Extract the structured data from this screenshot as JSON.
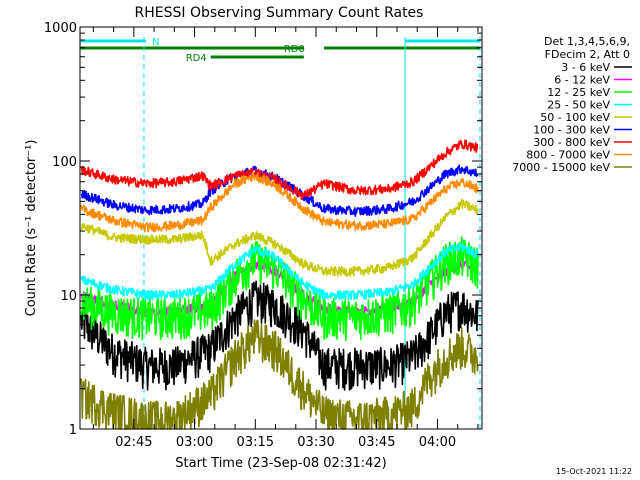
{
  "chart_data": {
    "type": "line",
    "title": "RHESSI Observing Summary Count Rates",
    "xlabel": "Start Time (23-Sep-08 02:31:42)",
    "ylabel": "Count Rate (s⁻¹ detector⁻¹)",
    "yscale": "log",
    "ylim": [
      1,
      1000
    ],
    "xlim": [
      "02:31:42",
      "04:11:00"
    ],
    "x_ticks": [
      "02:45",
      "03:00",
      "03:15",
      "03:30",
      "03:45",
      "04:00"
    ],
    "y_ticks": [
      "1",
      "10",
      "100",
      "1000"
    ],
    "footer_date": "15-Oct-2021 11:22",
    "legend_title": [
      "Det 1,3,4,5,6,9,",
      "FDecim 2, Att 0"
    ],
    "flags": [
      {
        "label": "N",
        "color": "#00e5ee",
        "segments": [
          [
            "02:31:42",
            "02:48:00"
          ],
          [
            "03:52:00",
            "04:10:30"
          ]
        ]
      },
      {
        "label": "RD0",
        "color": "#008000",
        "segments": [
          [
            "02:31:42",
            "03:27:00"
          ],
          [
            "03:32:00",
            "04:10:30"
          ]
        ]
      },
      {
        "label": "RD4",
        "color": "#008000",
        "segments": [
          [
            "03:04:00",
            "03:27:00"
          ]
        ]
      }
    ],
    "series": [
      {
        "name": "3 - 6 keV",
        "color": "#000000",
        "x": [
          "02:32",
          "02:40",
          "02:48",
          "02:55",
          "03:04",
          "03:10",
          "03:15",
          "03:20",
          "03:27",
          "03:32",
          "03:40",
          "03:48",
          "03:54",
          "03:58",
          "04:02",
          "04:06",
          "04:10"
        ],
        "y": [
          6.5,
          3.8,
          3.0,
          3.0,
          4.0,
          7.0,
          9.5,
          8.5,
          5.5,
          3.0,
          3.0,
          3.0,
          3.5,
          5.0,
          7.5,
          8.5,
          7.0
        ]
      },
      {
        "name": "6 - 12 keV",
        "color": "#ff00ff",
        "x": [
          "02:32",
          "02:40",
          "02:48",
          "02:55",
          "03:04",
          "03:10",
          "03:15",
          "03:20",
          "03:27",
          "03:32",
          "03:40",
          "03:48",
          "03:54",
          "03:58",
          "04:02",
          "04:06",
          "04:10"
        ],
        "y": [
          10,
          8.5,
          7.5,
          7.5,
          8.5,
          14,
          17,
          15,
          10,
          8,
          7.5,
          8,
          9,
          12,
          15,
          17,
          15
        ]
      },
      {
        "name": "12 - 25 keV",
        "color": "#00ff00",
        "x": [
          "02:32",
          "02:40",
          "02:48",
          "02:55",
          "03:04",
          "03:10",
          "03:15",
          "03:20",
          "03:27",
          "03:32",
          "03:40",
          "03:48",
          "03:54",
          "03:58",
          "04:02",
          "04:06",
          "04:10"
        ],
        "y": [
          9,
          7.5,
          7,
          7,
          8,
          14,
          19,
          16,
          9.5,
          7,
          7,
          7.5,
          9,
          13,
          18,
          20,
          17
        ]
      },
      {
        "name": "25 - 50 keV",
        "color": "#00ffff",
        "x": [
          "02:32",
          "02:40",
          "02:48",
          "02:55",
          "03:04",
          "03:10",
          "03:15",
          "03:20",
          "03:27",
          "03:32",
          "03:40",
          "03:48",
          "03:54",
          "03:58",
          "04:02",
          "04:06",
          "04:10"
        ],
        "y": [
          13,
          11,
          10,
          10,
          11,
          17,
          22,
          19,
          12,
          10,
          10,
          10.5,
          12,
          16,
          21,
          23,
          20
        ]
      },
      {
        "name": "50 - 100 keV",
        "color": "#c8c800",
        "x": [
          "02:32",
          "02:40",
          "02:48",
          "02:55",
          "03:02",
          "03:04",
          "03:10",
          "03:15",
          "03:20",
          "03:27",
          "03:32",
          "03:40",
          "03:48",
          "03:54",
          "03:58",
          "04:02",
          "04:06",
          "04:10"
        ],
        "y": [
          33,
          27,
          26,
          26,
          28,
          18,
          24,
          28,
          24,
          17,
          15,
          15,
          16,
          19,
          27,
          38,
          48,
          43
        ]
      },
      {
        "name": "100 - 300 keV",
        "color": "#0000ff",
        "x": [
          "02:32",
          "02:40",
          "02:48",
          "02:55",
          "03:02",
          "03:04",
          "03:10",
          "03:15",
          "03:20",
          "03:27",
          "03:32",
          "03:40",
          "03:48",
          "03:54",
          "03:58",
          "04:02",
          "04:06",
          "04:10"
        ],
        "y": [
          57,
          47,
          43,
          44,
          48,
          60,
          78,
          85,
          75,
          55,
          44,
          42,
          44,
          50,
          63,
          80,
          88,
          80
        ]
      },
      {
        "name": "300 - 800 keV",
        "color": "#ff0000",
        "x": [
          "02:32",
          "02:40",
          "02:48",
          "02:55",
          "03:02",
          "03:04",
          "03:10",
          "03:15",
          "03:20",
          "03:27",
          "03:32",
          "03:40",
          "03:48",
          "03:54",
          "03:58",
          "04:02",
          "04:06",
          "04:10"
        ],
        "y": [
          86,
          73,
          68,
          70,
          78,
          65,
          78,
          82,
          73,
          55,
          68,
          60,
          62,
          70,
          90,
          115,
          135,
          125
        ]
      },
      {
        "name": "800 - 7000 keV",
        "color": "#ff8c00",
        "x": [
          "02:32",
          "02:40",
          "02:48",
          "02:55",
          "03:02",
          "03:04",
          "03:10",
          "03:15",
          "03:20",
          "03:27",
          "03:32",
          "03:40",
          "03:48",
          "03:54",
          "03:58",
          "04:02",
          "04:06",
          "04:10"
        ],
        "y": [
          44,
          36,
          32,
          33,
          36,
          45,
          68,
          78,
          66,
          44,
          35,
          33,
          34,
          37,
          48,
          62,
          70,
          62
        ]
      },
      {
        "name": "7000 - 15000 keV",
        "color": "#808000",
        "x": [
          "02:32",
          "02:40",
          "02:48",
          "02:55",
          "03:04",
          "03:10",
          "03:15",
          "03:20",
          "03:27",
          "03:32",
          "03:40",
          "03:48",
          "03:54",
          "03:58",
          "04:02",
          "04:06",
          "04:10"
        ],
        "y": [
          1.8,
          1.4,
          1.2,
          1.2,
          1.8,
          3.5,
          5.0,
          4.0,
          2.0,
          1.3,
          1.2,
          1.3,
          1.5,
          2.5,
          3.5,
          4.2,
          3.5
        ]
      }
    ],
    "vlines": [
      {
        "time": "02:47:30",
        "color": "#00e5ee",
        "style": "dashed"
      },
      {
        "time": "03:52:00",
        "color": "#00e5ee",
        "style": "solid"
      },
      {
        "time": "04:10:30",
        "color": "#00e5ee",
        "style": "dashed"
      }
    ],
    "grid": false,
    "legend_position": "right"
  }
}
